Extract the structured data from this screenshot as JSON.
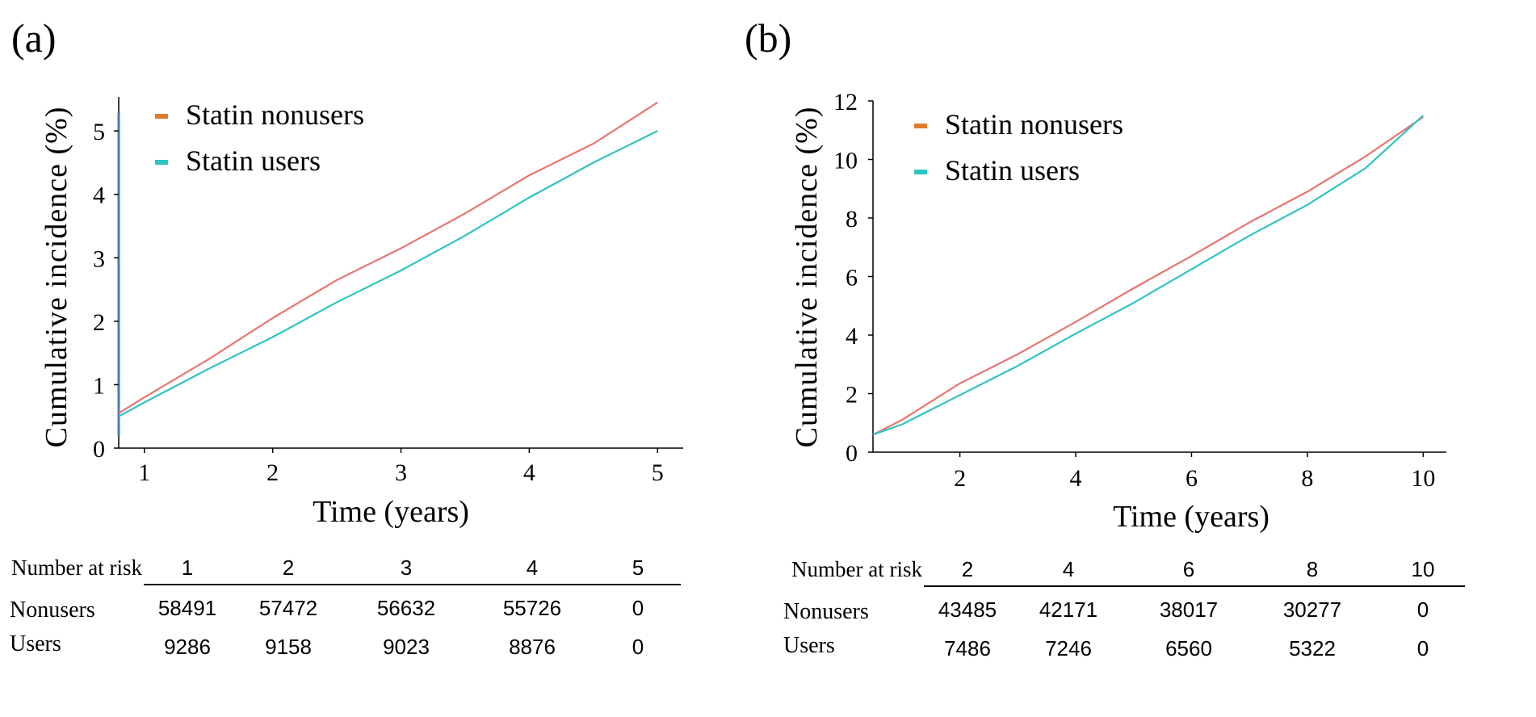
{
  "colors": {
    "nonusers": "#E8756F",
    "users": "#2EC4C2",
    "legend_nonusers": "#E07B2F",
    "legend_users": "#2EC4C2",
    "axis": "#000000"
  },
  "chart_data": [
    {
      "type": "line",
      "panel_label": "(a)",
      "title": "",
      "xlabel": "Time (years)",
      "ylabel": "Cumulative incidence (%)",
      "xlim": [
        0.8,
        5.2
      ],
      "ylim": [
        0,
        5.6
      ],
      "xticks": [
        1,
        2,
        3,
        4,
        5
      ],
      "yticks": [
        0,
        1,
        2,
        3,
        4,
        5
      ],
      "legend_position": "top-left",
      "series": [
        {
          "name": "Statin nonusers",
          "color": "#E8756F",
          "x": [
            0.8,
            1.0,
            1.5,
            2.0,
            2.5,
            3.0,
            3.5,
            4.0,
            4.5,
            5.0
          ],
          "y": [
            0.55,
            0.8,
            1.4,
            2.05,
            2.65,
            3.15,
            3.7,
            4.3,
            4.8,
            5.45
          ]
        },
        {
          "name": "Statin users",
          "color": "#2EC4C2",
          "x": [
            0.8,
            1.0,
            1.5,
            2.0,
            2.5,
            3.0,
            3.5,
            4.0,
            4.5,
            5.0
          ],
          "y": [
            0.5,
            0.72,
            1.25,
            1.75,
            2.3,
            2.8,
            3.35,
            3.95,
            4.5,
            5.0
          ]
        }
      ],
      "risk_table": {
        "header_label": "Number at risk",
        "timepoints": [
          "1",
          "2",
          "3",
          "4",
          "5"
        ],
        "rows": [
          {
            "label": "Nonusers",
            "values": [
              "58491",
              "57472",
              "56632",
              "55726",
              "0"
            ]
          },
          {
            "label": "Users",
            "values": [
              "9286",
              "9158",
              "9023",
              "8876",
              "0"
            ]
          }
        ]
      }
    },
    {
      "type": "line",
      "panel_label": "(b)",
      "title": "",
      "xlabel": "Time (years)",
      "ylabel": "Cumulative incidence (%)",
      "xlim": [
        0.5,
        10.4
      ],
      "ylim": [
        0,
        12
      ],
      "xticks": [
        2,
        4,
        6,
        8,
        10
      ],
      "yticks": [
        0,
        2,
        4,
        6,
        8,
        10,
        12
      ],
      "legend_position": "top-left",
      "series": [
        {
          "name": "Statin nonusers",
          "color": "#E8756F",
          "x": [
            0.5,
            1.0,
            2.0,
            3.0,
            4.0,
            5.0,
            6.0,
            7.0,
            8.0,
            9.0,
            10.0
          ],
          "y": [
            0.6,
            1.1,
            2.35,
            3.35,
            4.45,
            5.6,
            6.7,
            7.85,
            8.9,
            10.1,
            11.45
          ]
        },
        {
          "name": "Statin users",
          "color": "#2EC4C2",
          "x": [
            0.5,
            1.0,
            2.0,
            3.0,
            4.0,
            5.0,
            6.0,
            7.0,
            8.0,
            9.0,
            10.0
          ],
          "y": [
            0.6,
            0.95,
            1.95,
            2.95,
            4.05,
            5.1,
            6.25,
            7.4,
            8.45,
            9.7,
            11.5
          ]
        }
      ],
      "risk_table": {
        "header_label": "Number at risk",
        "timepoints": [
          "2",
          "4",
          "6",
          "8",
          "10"
        ],
        "rows": [
          {
            "label": "Nonusers",
            "values": [
              "43485",
              "42171",
              "38017",
              "30277",
              "0"
            ]
          },
          {
            "label": "Users",
            "values": [
              "7486",
              "7246",
              "6560",
              "5322",
              "0"
            ]
          }
        ]
      }
    }
  ]
}
